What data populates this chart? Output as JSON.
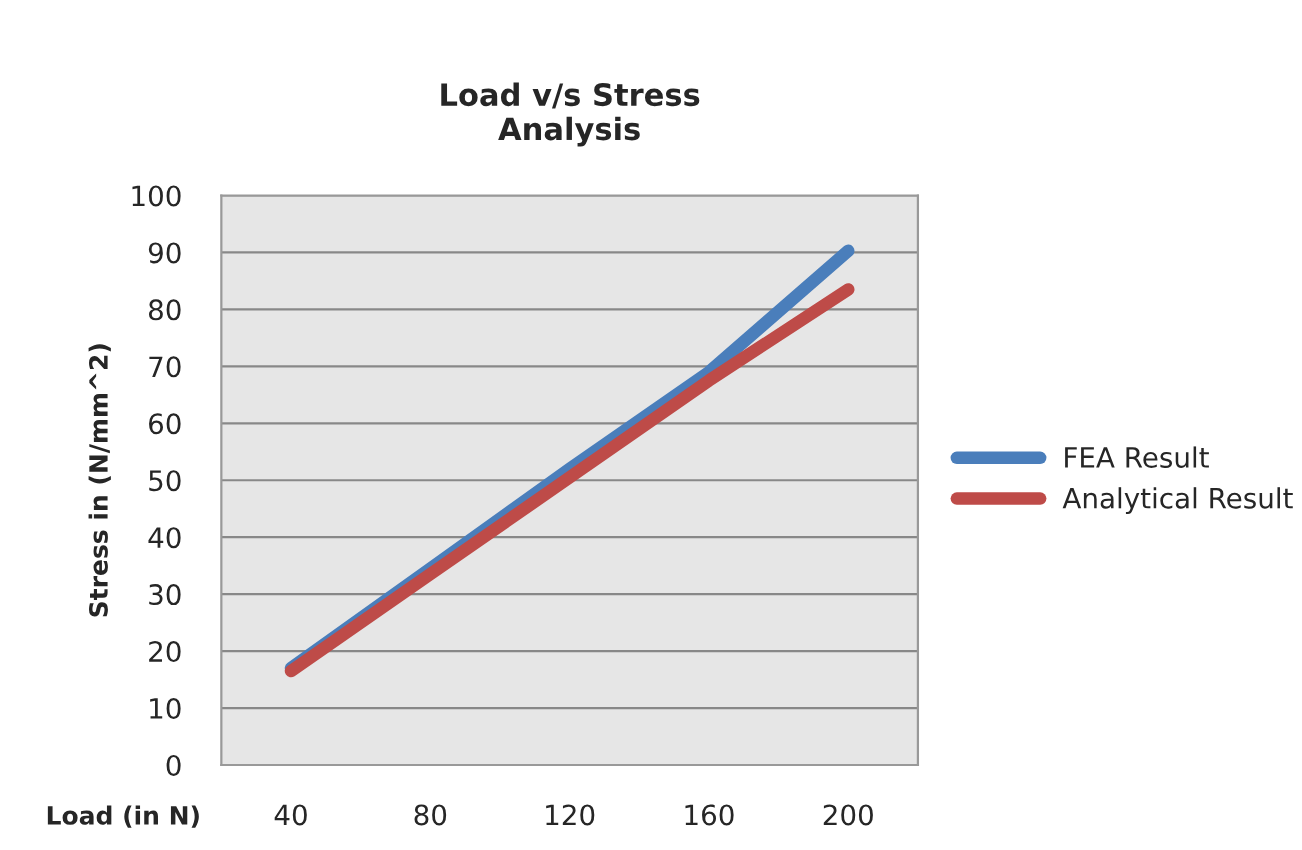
{
  "chart_data": {
    "type": "line",
    "title": "Load v/s Stress\nAnalysis",
    "xlabel": "Load (in N)",
    "ylabel": "Stress in (N/mm^2)",
    "categories": [
      "40",
      "80",
      "120",
      "160",
      "200"
    ],
    "series": [
      {
        "name": "FEA Result",
        "color": "#4a7ebb",
        "values": [
          17,
          34.5,
          52,
          69,
          90.3
        ]
      },
      {
        "name": "Analytical Result",
        "color": "#be4b48",
        "values": [
          16.5,
          33.5,
          50.5,
          67.5,
          83.5
        ]
      }
    ],
    "ylim": [
      0,
      100
    ],
    "yticks": [
      0,
      10,
      20,
      30,
      40,
      50,
      60,
      70,
      80,
      90,
      100
    ],
    "grid": "y",
    "legend": "right",
    "marker": "none",
    "line_style": "solid"
  }
}
